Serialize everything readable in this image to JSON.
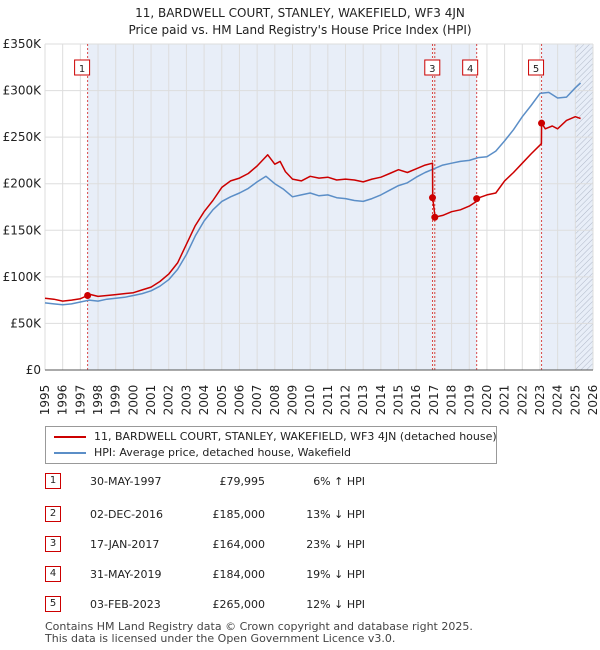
{
  "chart_data": {
    "type": "line",
    "title": "11, BARDWELL COURT, STANLEY, WAKEFIELD, WF3 4JN",
    "subtitle": "Price paid vs. HM Land Registry's House Price Index (HPI)",
    "xlabel": "",
    "ylabel": "",
    "xlim": [
      1995,
      2026
    ],
    "ylim": [
      0,
      350000
    ],
    "y_ticks": [
      {
        "value": 0,
        "label": "£0"
      },
      {
        "value": 50000,
        "label": "£50K"
      },
      {
        "value": 100000,
        "label": "£100K"
      },
      {
        "value": 150000,
        "label": "£150K"
      },
      {
        "value": 200000,
        "label": "£200K"
      },
      {
        "value": 250000,
        "label": "£250K"
      },
      {
        "value": 300000,
        "label": "£300K"
      },
      {
        "value": 350000,
        "label": "£350K"
      }
    ],
    "x_ticks": [
      "1995",
      "1996",
      "1997",
      "1998",
      "1999",
      "2000",
      "2001",
      "2002",
      "2003",
      "2004",
      "2005",
      "2006",
      "2007",
      "2008",
      "2009",
      "2010",
      "2011",
      "2012",
      "2013",
      "2014",
      "2015",
      "2016",
      "2017",
      "2018",
      "2019",
      "2020",
      "2021",
      "2022",
      "2023",
      "2024",
      "2025",
      "2026"
    ],
    "grid": true,
    "series": [
      {
        "name": "11, BARDWELL COURT, STANLEY, WAKEFIELD, WF3 4JN (detached house)",
        "color": "#cc0000",
        "x": [
          1995,
          1995.5,
          1996,
          1996.5,
          1997,
          1997.41,
          1997.6,
          1998,
          1998.5,
          1999,
          1999.5,
          2000,
          2000.5,
          2001,
          2001.5,
          2002,
          2002.5,
          2003,
          2003.5,
          2004,
          2004.5,
          2005,
          2005.5,
          2006,
          2006.5,
          2007,
          2007.3,
          2007.6,
          2008,
          2008.3,
          2008.6,
          2009,
          2009.5,
          2010,
          2010.5,
          2011,
          2011.5,
          2012,
          2012.5,
          2013,
          2013.5,
          2014,
          2014.5,
          2015,
          2015.5,
          2016,
          2016.5,
          2016.92,
          2016.93,
          2017.04,
          2017.05,
          2017.5,
          2018,
          2018.5,
          2019,
          2019.41,
          2019.42,
          2019.7,
          2020,
          2020.5,
          2021,
          2021.5,
          2022,
          2022.5,
          2023.08,
          2023.09,
          2023.3,
          2023.7,
          2024,
          2024.5,
          2025,
          2025.3
        ],
        "y": [
          77000,
          76000,
          74000,
          75000,
          76500,
          79995,
          81000,
          79000,
          80000,
          81000,
          82000,
          83000,
          86000,
          89000,
          95000,
          103000,
          115000,
          135000,
          155000,
          170000,
          182000,
          196000,
          203000,
          206000,
          211000,
          219000,
          225000,
          231000,
          221000,
          224000,
          213000,
          205000,
          203000,
          208000,
          206000,
          207000,
          204000,
          205000,
          204000,
          202000,
          205000,
          207000,
          211000,
          215000,
          212000,
          216000,
          220000,
          222000,
          185000,
          168000,
          164000,
          166000,
          170000,
          172000,
          176000,
          181000,
          184000,
          186000,
          188000,
          190000,
          203000,
          212000,
          222000,
          232000,
          243000,
          265000,
          259000,
          262000,
          259000,
          268000,
          272000,
          270000
        ]
      },
      {
        "name": "HPI: Average price, detached house, Wakefield",
        "color": "#5b8ec7",
        "x": [
          1995,
          1995.5,
          1996,
          1996.5,
          1997,
          1997.5,
          1998,
          1998.5,
          1999,
          1999.5,
          2000,
          2000.5,
          2001,
          2001.5,
          2002,
          2002.5,
          2003,
          2003.5,
          2004,
          2004.5,
          2005,
          2005.5,
          2006,
          2006.5,
          2007,
          2007.5,
          2008,
          2008.5,
          2009,
          2009.5,
          2010,
          2010.5,
          2011,
          2011.5,
          2012,
          2012.5,
          2013,
          2013.5,
          2014,
          2014.5,
          2015,
          2015.5,
          2016,
          2016.5,
          2017,
          2017.5,
          2018,
          2018.5,
          2019,
          2019.5,
          2020,
          2020.5,
          2021,
          2021.5,
          2022,
          2022.5,
          2023,
          2023.5,
          2024,
          2024.5,
          2025,
          2025.3
        ],
        "y": [
          72000,
          71000,
          70000,
          71000,
          73000,
          75000,
          74000,
          76000,
          77000,
          78000,
          80000,
          82000,
          85000,
          90000,
          97000,
          108000,
          124000,
          144000,
          160000,
          172000,
          181000,
          186000,
          190000,
          195000,
          202000,
          208000,
          200000,
          194000,
          186000,
          188000,
          190000,
          187000,
          188000,
          185000,
          184000,
          182000,
          181000,
          184000,
          188000,
          193000,
          198000,
          201000,
          207000,
          212000,
          216000,
          220000,
          222000,
          224000,
          225000,
          228000,
          229000,
          235000,
          246000,
          258000,
          272000,
          284000,
          297000,
          298000,
          292000,
          293000,
          303000,
          308000
        ]
      }
    ],
    "sales": [
      {
        "label": "1",
        "year": 1997.41,
        "price": 79995,
        "date": "30-MAY-1997",
        "price_text": "£79,995",
        "hpi_text": "6% ↑ HPI"
      },
      {
        "label": "2",
        "year": 2016.92,
        "price": 185000,
        "date": "02-DEC-2016",
        "price_text": "£185,000",
        "hpi_text": "13% ↓ HPI"
      },
      {
        "label": "3",
        "year": 2017.05,
        "price": 164000,
        "date": "17-JAN-2017",
        "price_text": "£164,000",
        "hpi_text": "23% ↓ HPI"
      },
      {
        "label": "4",
        "year": 2019.42,
        "price": 184000,
        "date": "31-MAY-2019",
        "price_text": "£184,000",
        "hpi_text": "19% ↓ HPI"
      },
      {
        "label": "5",
        "year": 2023.09,
        "price": 265000,
        "date": "03-FEB-2023",
        "price_text": "£265,000",
        "hpi_text": "12% ↓ HPI"
      }
    ],
    "chart_markers": [
      "1",
      "3",
      "4",
      "5"
    ],
    "projection_start": 2025.0
  },
  "legend": {
    "series_1_label": "11, BARDWELL COURT, STANLEY, WAKEFIELD, WF3 4JN (detached house)",
    "series_2_label": "HPI: Average price, detached house, Wakefield"
  },
  "footer": {
    "line1": "Contains HM Land Registry data © Crown copyright and database right 2025.",
    "line2": "This data is licensed under the Open Government Licence v3.0."
  },
  "colors": {
    "price_line": "#cc0000",
    "hpi_line": "#5b8ec7",
    "shade": "#e8eef8",
    "grid": "#dddddd"
  }
}
